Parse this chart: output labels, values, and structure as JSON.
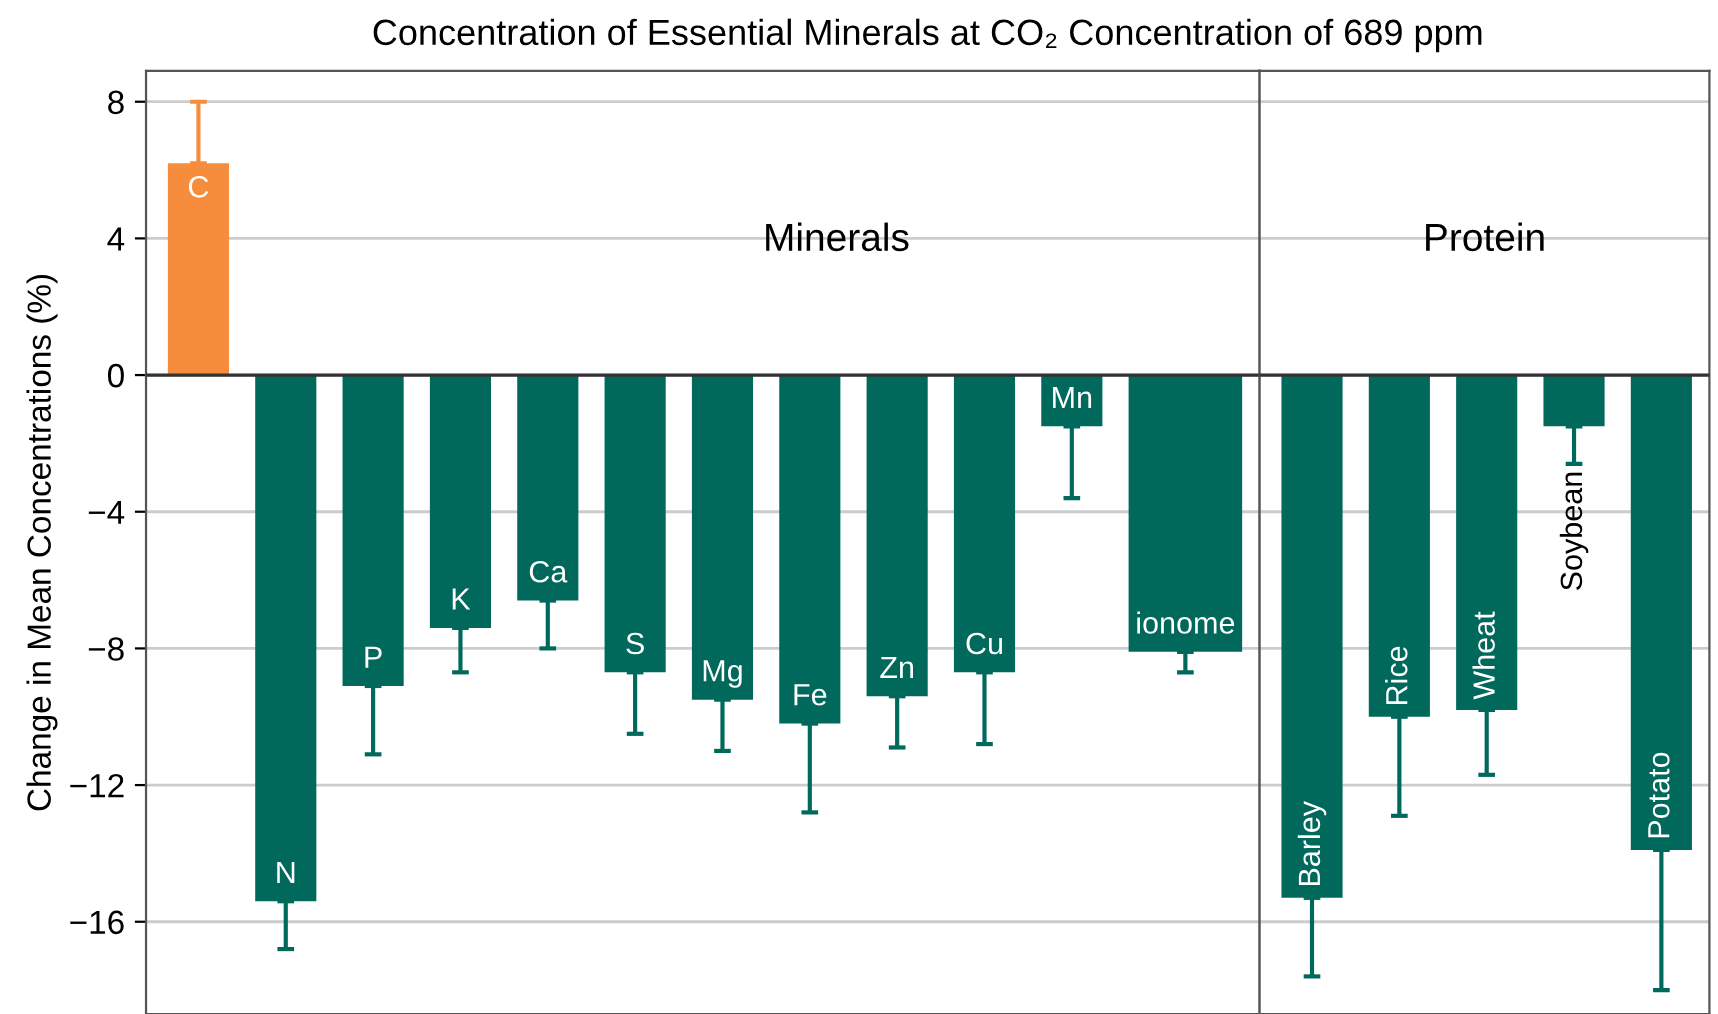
{
  "chart_data": [
    {
      "type": "bar",
      "title": "Concentration of Essential Minerals at CO₂ Concentration of 689 ppm",
      "ylabel": "Change in Mean Concentrations (%)",
      "categories": [
        "C",
        "N",
        "P",
        "K",
        "Ca",
        "S",
        "Mg",
        "Fe",
        "Zn",
        "Cu",
        "Mn",
        "ionome"
      ],
      "values": [
        6.2,
        -15.4,
        -9.1,
        -7.4,
        -6.6,
        -8.7,
        -9.5,
        -10.2,
        -9.4,
        -8.7,
        -1.5,
        -8.1
      ],
      "errors": [
        [
          6.2,
          8.0
        ],
        [
          -16.8,
          -15.4
        ],
        [
          -11.1,
          -9.1
        ],
        [
          -8.7,
          -7.4
        ],
        [
          -8.0,
          -6.6
        ],
        [
          -10.5,
          -8.7
        ],
        [
          -11.0,
          -9.5
        ],
        [
          -12.8,
          -10.2
        ],
        [
          -10.9,
          -9.4
        ],
        [
          -10.8,
          -8.7
        ],
        [
          -3.6,
          -1.5
        ],
        [
          -8.7,
          -8.1
        ]
      ],
      "colors": [
        "#f58d3d",
        "#00695c",
        "#00695c",
        "#00695c",
        "#00695c",
        "#00695c",
        "#00695c",
        "#00695c",
        "#00695c",
        "#00695c",
        "#00695c",
        "#00695c"
      ],
      "annotations": [
        "Minerals"
      ],
      "ylim": [
        -18.7,
        8.9
      ],
      "yticks": [
        {
          "value": -16,
          "label": "−16"
        },
        {
          "value": -12,
          "label": "−12"
        },
        {
          "value": -8,
          "label": "−8"
        },
        {
          "value": -4,
          "label": "−4"
        },
        0,
        4,
        8
      ],
      "grid": "y",
      "tick_labels": "y"
    },
    {
      "type": "bar",
      "categories": [
        "Barley",
        "Rice",
        "Wheat",
        "Soybean",
        "Potato"
      ],
      "values": [
        -15.3,
        -10.0,
        -9.8,
        -1.5,
        -13.9
      ],
      "errors": [
        [
          -17.6,
          -15.3
        ],
        [
          -12.9,
          -10.0
        ],
        [
          -11.7,
          -9.8
        ],
        [
          -2.6,
          -1.5
        ],
        [
          -18.0,
          -13.9
        ]
      ],
      "colors": [
        "#00695c",
        "#00695c",
        "#00695c",
        "#00695c",
        "#00695c"
      ],
      "annotations": [
        "Protein"
      ],
      "ylim": [
        -18.7,
        8.9
      ],
      "yticks": [
        {
          "value": -16,
          "label": null
        },
        {
          "value": -12,
          "label": null
        },
        {
          "value": -8,
          "label": null
        },
        {
          "value": -4,
          "label": null
        },
        {
          "value": 0,
          "label": null
        },
        {
          "value": 4,
          "label": null
        },
        {
          "value": 8,
          "label": null
        }
      ],
      "grid": "y",
      "tick_labels": false
    }
  ]
}
